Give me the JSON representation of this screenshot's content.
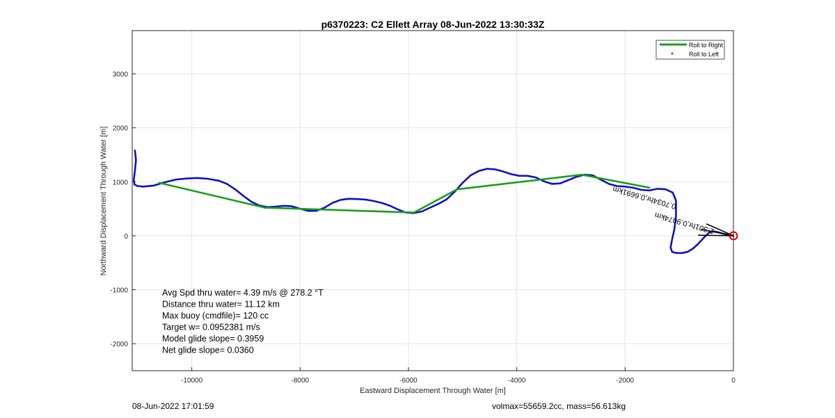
{
  "chart_data": {
    "type": "line",
    "title": "p6370223: C2 Ellett Array 08-Jun-2022 13:30:33Z",
    "xlabel": "Eastward Displacement Through Water [m]",
    "ylabel": "Northward Displacement Through Water [m]",
    "xlim": [
      -11100,
      0
    ],
    "ylim": [
      -2500,
      3800
    ],
    "xticks": [
      -10000,
      -8000,
      -6000,
      -4000,
      -2000,
      0
    ],
    "yticks": [
      -2000,
      -1000,
      0,
      1000,
      2000,
      3000
    ],
    "grid": true,
    "legend_position": "top-right",
    "legend": [
      {
        "label": "Roll to Right",
        "color": "#1a9e1a",
        "style": "line"
      },
      {
        "label": "Roll to Left",
        "color": "#ff0000",
        "style": "marker"
      }
    ],
    "series": [
      {
        "name": "",
        "color": "#1010c0",
        "x": [
          -11050,
          -11030,
          -11050,
          -11070,
          -11060,
          -11000,
          -10900,
          -10700,
          -10500,
          -10300,
          -10100,
          -9900,
          -9700,
          -9500,
          -9350,
          -9200,
          -9050,
          -8900,
          -8750,
          -8600,
          -8450,
          -8300,
          -8150,
          -8000,
          -7850,
          -7700,
          -7550,
          -7400,
          -7250,
          -7100,
          -6950,
          -6800,
          -6650,
          -6500,
          -6350,
          -6200,
          -6050,
          -5900,
          -5750,
          -5600,
          -5450,
          -5300,
          -5150,
          -5000,
          -4850,
          -4700,
          -4550,
          -4400,
          -4250,
          -4100,
          -3950,
          -3800,
          -3650,
          -3500,
          -3350,
          -3200,
          -3050,
          -2900,
          -2750,
          -2600,
          -2450,
          -2300,
          -2150,
          -2000,
          -1850,
          -1700,
          -1550,
          -1400,
          -1250,
          -1120,
          -1060,
          -1060,
          -1090,
          -1130,
          -1160,
          -1130,
          -1050,
          -950,
          -850,
          -750,
          -650,
          -550,
          -450,
          -370,
          -300,
          -200,
          -100,
          0
        ],
        "y": [
          1580,
          1400,
          1200,
          1050,
          950,
          920,
          910,
          930,
          990,
          1040,
          1060,
          1070,
          1055,
          1020,
          960,
          860,
          740,
          630,
          560,
          530,
          540,
          555,
          545,
          500,
          460,
          460,
          520,
          610,
          665,
          685,
          680,
          670,
          645,
          610,
          560,
          490,
          430,
          420,
          450,
          520,
          590,
          670,
          810,
          980,
          1120,
          1200,
          1240,
          1230,
          1190,
          1140,
          1110,
          1110,
          1080,
          1010,
          960,
          970,
          1030,
          1090,
          1130,
          1120,
          1040,
          960,
          920,
          910,
          890,
          850,
          840,
          870,
          860,
          800,
          650,
          360,
          120,
          -60,
          -220,
          -300,
          -320,
          -320,
          -300,
          -240,
          -150,
          -40,
          60,
          80,
          70,
          40,
          20,
          0
        ]
      },
      {
        "name": "Roll to Right",
        "color": "#1a9e1a",
        "x": [
          -10600,
          -8650,
          -5900,
          -5100,
          -2800,
          -1550
        ],
        "y": [
          980,
          520,
          430,
          860,
          1130,
          890
        ]
      }
    ],
    "stats": [
      "Avg Spd thru water=  4.39 m/s @ 278.2 °T",
      "Distance thru water= 11.12 km",
      "Max buoy (cmdfile)= 120 cc",
      "Target w= 0.0952381 m/s",
      "Model glide slope= 0.3959",
      "Net glide slope= 0.0360"
    ],
    "annotations": [
      {
        "text": "2.301hr,0.9074km",
        "x": -350,
        "y": 120,
        "color": "#000000"
      },
      {
        "text": "0.7034hr,0.6691km",
        "x": -1050,
        "y": 580,
        "color": "#000000"
      }
    ],
    "marker": {
      "x": 0,
      "y": 0,
      "color": "#dd0000"
    }
  },
  "footer": {
    "left": "08-Jun-2022 17:01:59",
    "right": "volmax=55659.2cc, mass=56.613kg"
  }
}
